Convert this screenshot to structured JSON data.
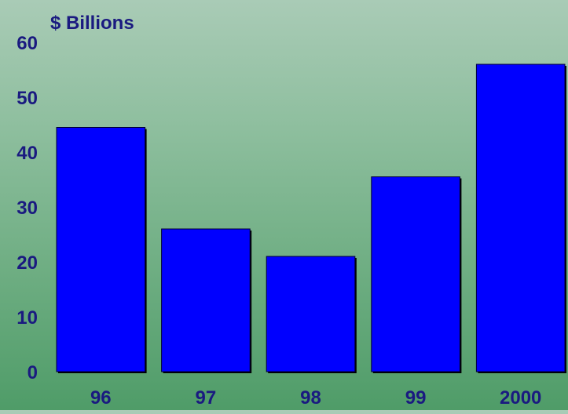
{
  "chart_data": {
    "type": "bar",
    "title": "",
    "ylabel": "$ Billions",
    "xlabel": "",
    "categories": [
      "96",
      "97",
      "98",
      "99",
      "2000"
    ],
    "values": [
      44.5,
      26,
      21,
      35.5,
      56
    ],
    "ylim": [
      0,
      60
    ],
    "yticks": [
      0,
      10,
      20,
      30,
      40,
      50,
      60
    ],
    "grid": false,
    "legend": "none",
    "colors": {
      "bar_fill": "#0000ff",
      "bar_edge": "#000033",
      "bar_shadow": "#000000",
      "text": "#1a1a80"
    }
  }
}
